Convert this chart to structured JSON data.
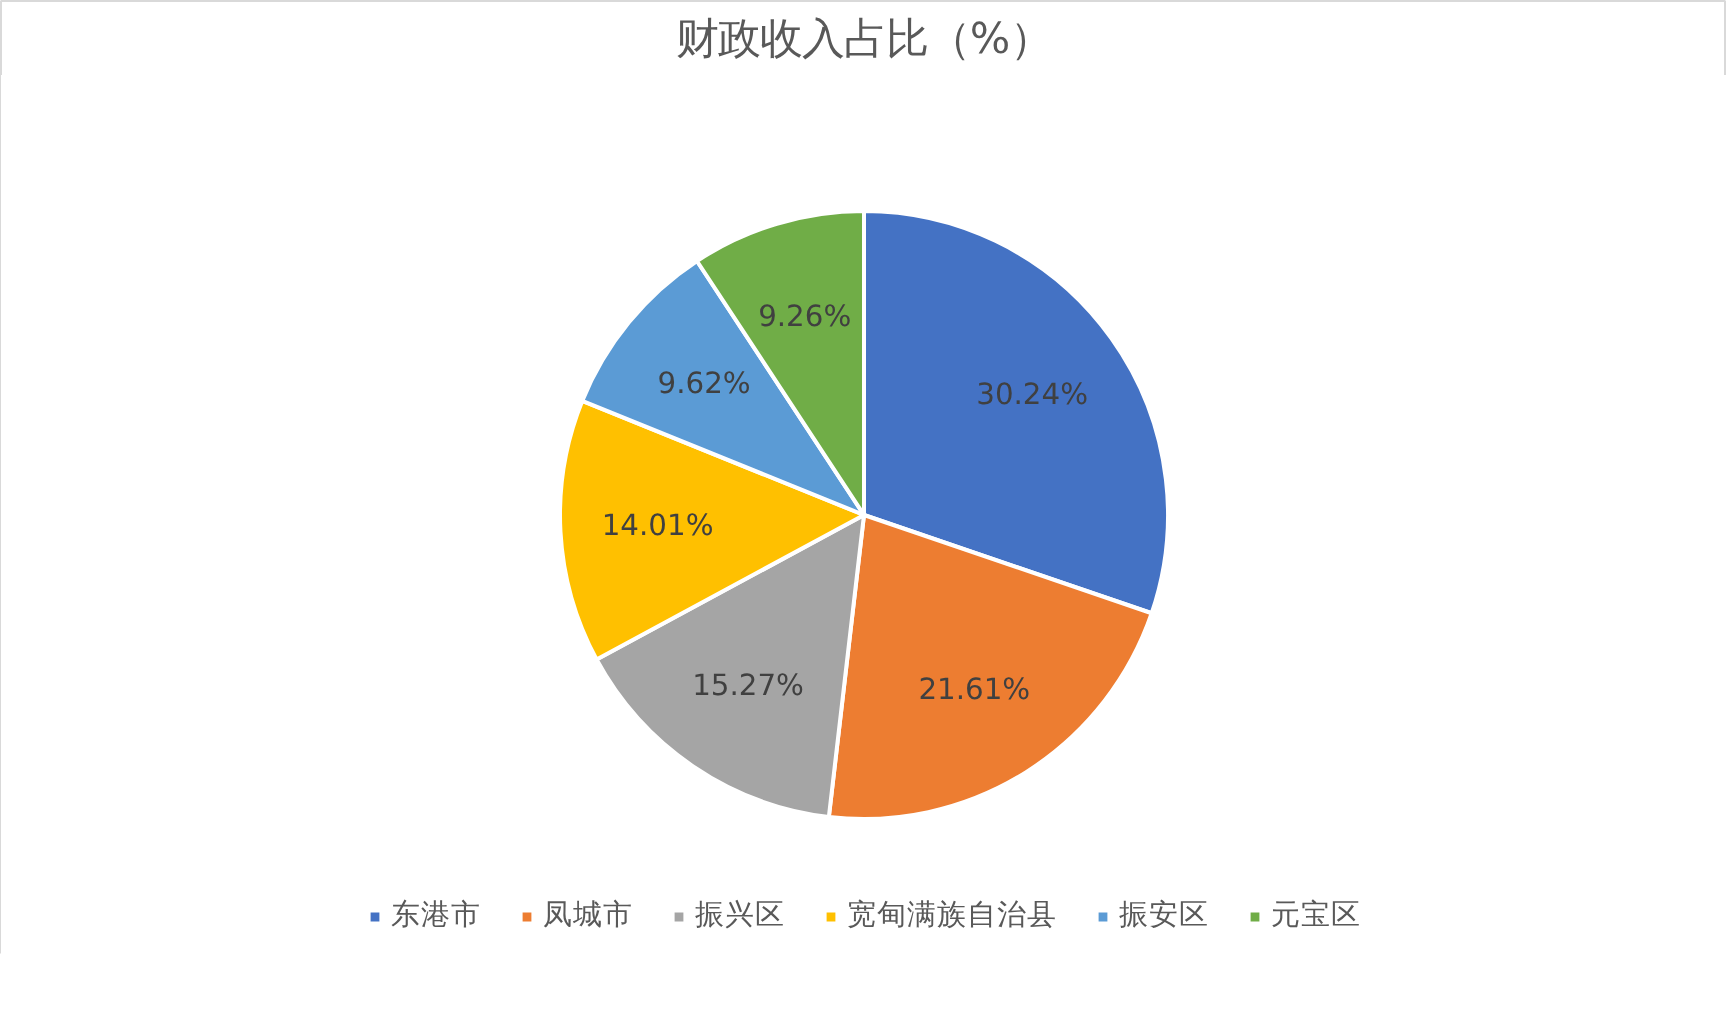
{
  "chart_data": {
    "type": "pie",
    "title": "财政收入占比（%）",
    "categories": [
      "东港市",
      "凤城市",
      "振兴区",
      "宽甸满族自治县",
      "振安区",
      "元宝区"
    ],
    "values": [
      30.24,
      21.61,
      15.27,
      14.01,
      9.62,
      9.26
    ],
    "colors": [
      "#4472c4",
      "#ed7d31",
      "#a5a5a5",
      "#ffc000",
      "#5b9bd5",
      "#70ad47"
    ],
    "value_labels": [
      "30.24%",
      "21.61%",
      "15.27%",
      "14.01%",
      "9.62%",
      "9.26%"
    ],
    "legend": "bottom"
  }
}
